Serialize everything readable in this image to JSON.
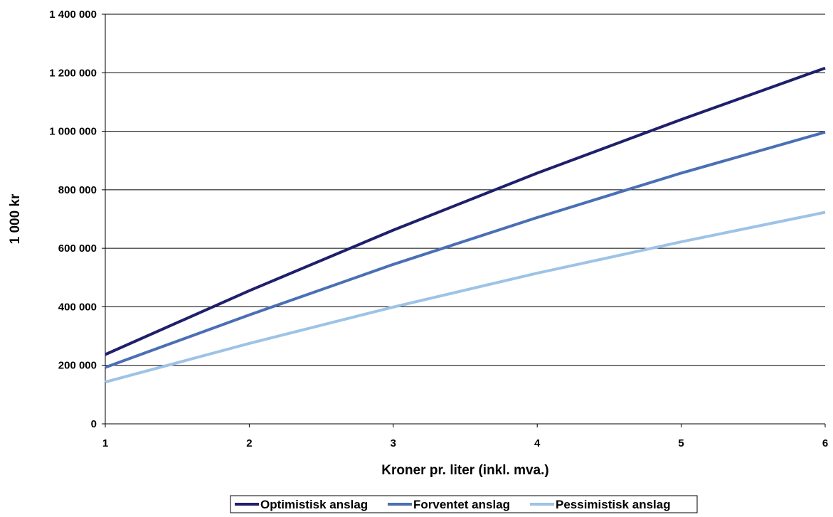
{
  "chart_data": {
    "type": "line",
    "title": "",
    "xlabel": "Kroner pr. liter (inkl. mva.)",
    "ylabel": "1 000 kr",
    "x": [
      1,
      2,
      3,
      4,
      5,
      6
    ],
    "x_tick_labels": [
      "1",
      "2",
      "3",
      "4",
      "5",
      "6"
    ],
    "y_ticks": [
      0,
      200000,
      400000,
      600000,
      800000,
      1000000,
      1200000,
      1400000
    ],
    "y_tick_labels": [
      "0",
      "200 000",
      "400 000",
      "600 000",
      "800 000",
      "1 000 000",
      "1 200 000",
      "1 400 000"
    ],
    "xlim": [
      1,
      6
    ],
    "ylim": [
      0,
      1400000
    ],
    "grid": "horizontal",
    "legend_position": "bottom-center",
    "series": [
      {
        "name": "Optimistisk anslag",
        "color": "#1f1f6b",
        "values": [
          237000,
          455000,
          662000,
          857000,
          1040000,
          1216000
        ]
      },
      {
        "name": "Forventet anslag",
        "color": "#4a6fb5",
        "values": [
          193000,
          372000,
          545000,
          705000,
          857000,
          997000
        ]
      },
      {
        "name": "Pessimistisk anslag",
        "color": "#9dc3e6",
        "values": [
          143000,
          275000,
          399000,
          515000,
          622000,
          723000
        ]
      }
    ]
  }
}
